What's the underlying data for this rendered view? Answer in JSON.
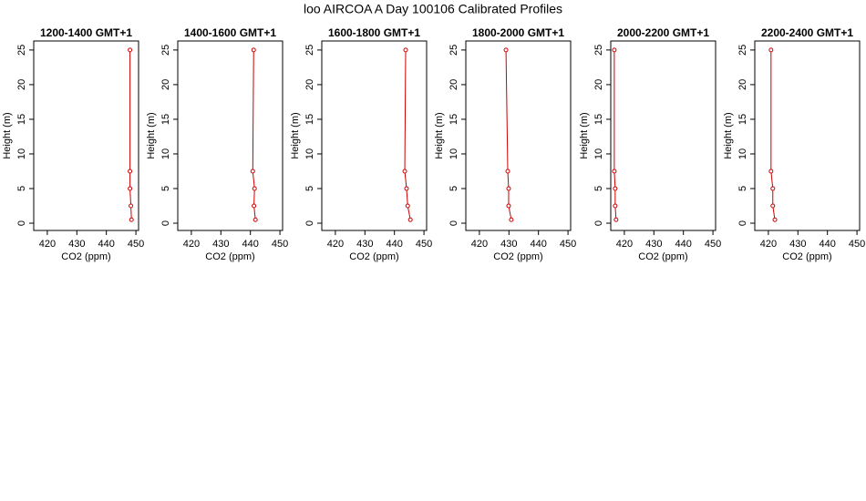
{
  "title": "loo AIRCOA A  Day 100106  Calibrated Profiles",
  "chart_data": [
    {
      "type": "line",
      "title": "1200-1400 GMT+1",
      "xlabel": "CO2 (ppm)",
      "ylabel": "Height (m)",
      "color": "#cc0000",
      "x": [
        448,
        448,
        448,
        448.3,
        448.5
      ],
      "values": [
        25,
        7.5,
        5,
        2.5,
        0.5
      ],
      "xlim": [
        415.4,
        450.9
      ],
      "ylim": [
        -1.05,
        26.3
      ],
      "xticks": [
        420,
        430,
        440,
        450
      ],
      "yticks": [
        0,
        5,
        10,
        15,
        20,
        25
      ]
    },
    {
      "type": "line",
      "title": "1400-1600 GMT+1",
      "xlabel": "CO2 (ppm)",
      "ylabel": "Height (m)",
      "color": "#cc0000",
      "x": [
        441.1,
        440.8,
        441.4,
        441.2,
        441.7
      ],
      "values": [
        25,
        7.5,
        5,
        2.5,
        0.5
      ],
      "xlim": [
        415.4,
        450.9
      ],
      "ylim": [
        -1.05,
        26.3
      ],
      "xticks": [
        420,
        430,
        440,
        450
      ],
      "yticks": [
        0,
        5,
        10,
        15,
        20,
        25
      ]
    },
    {
      "type": "line",
      "title": "1600-1800 GMT+1",
      "xlabel": "CO2 (ppm)",
      "ylabel": "Height (m)",
      "color": "#cc0000",
      "x": [
        443.8,
        443.5,
        444.1,
        444.5,
        445.4
      ],
      "values": [
        25,
        7.5,
        5,
        2.5,
        0.5
      ],
      "xlim": [
        415.4,
        450.9
      ],
      "ylim": [
        -1.05,
        26.3
      ],
      "xticks": [
        420,
        430,
        440,
        450
      ],
      "yticks": [
        0,
        5,
        10,
        15,
        20,
        25
      ]
    },
    {
      "type": "line",
      "title": "1800-2000 GMT+1",
      "xlabel": "CO2 (ppm)",
      "ylabel": "Height (m)",
      "color": "#cc0000",
      "x": [
        429,
        429.6,
        429.9,
        429.9,
        430.8
      ],
      "values": [
        25,
        7.5,
        5,
        2.5,
        0.5
      ],
      "xlim": [
        415.4,
        450.9
      ],
      "ylim": [
        -1.05,
        26.3
      ],
      "xticks": [
        420,
        430,
        440,
        450
      ],
      "yticks": [
        0,
        5,
        10,
        15,
        20,
        25
      ]
    },
    {
      "type": "line",
      "title": "2000-2200 GMT+1",
      "xlabel": "CO2 (ppm)",
      "ylabel": "Height (m)",
      "color": "#cc0000",
      "x": [
        416.6,
        416.6,
        416.9,
        416.9,
        417.2
      ],
      "values": [
        25,
        7.5,
        5,
        2.5,
        0.5
      ],
      "xlim": [
        415.4,
        450.9
      ],
      "ylim": [
        -1.05,
        26.3
      ],
      "xticks": [
        420,
        430,
        440,
        450
      ],
      "yticks": [
        0,
        5,
        10,
        15,
        20,
        25
      ]
    },
    {
      "type": "line",
      "title": "2200-2400 GMT+1",
      "xlabel": "CO2 (ppm)",
      "ylabel": "Height (m)",
      "color": "#cc0000",
      "x": [
        420.9,
        420.9,
        421.5,
        421.5,
        422.2
      ],
      "values": [
        25,
        7.5,
        5,
        2.5,
        0.5
      ],
      "xlim": [
        415.4,
        450.9
      ],
      "ylim": [
        -1.05,
        26.3
      ],
      "xticks": [
        420,
        430,
        440,
        450
      ],
      "yticks": [
        0,
        5,
        10,
        15,
        20,
        25
      ]
    }
  ]
}
